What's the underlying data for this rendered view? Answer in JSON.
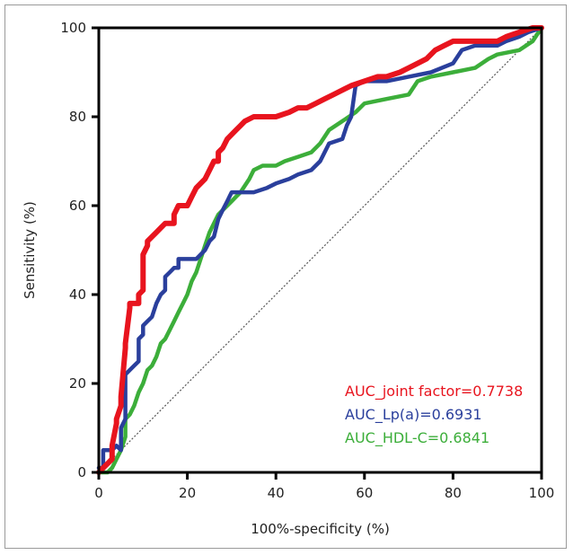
{
  "chart_data": {
    "type": "line",
    "title": "",
    "xlabel": "100%-specificity (%)",
    "ylabel": "Sensitivity (%)",
    "xlim": [
      0,
      100
    ],
    "ylim": [
      0,
      100
    ],
    "xticks": [
      "0",
      "20",
      "40",
      "60",
      "80",
      "100"
    ],
    "yticks": [
      "0",
      "20",
      "40",
      "60",
      "80",
      "100"
    ],
    "legend_position": "bottom-right",
    "reference_line": {
      "name": "chance",
      "x": [
        0,
        100
      ],
      "y": [
        0,
        100
      ],
      "color": "#555555"
    },
    "series": [
      {
        "name": "AUC_joint factor=0.7738",
        "color": "#e8141e",
        "x": [
          0,
          1,
          2,
          3,
          3,
          4,
          4,
          5,
          5,
          6,
          6,
          7,
          7,
          9,
          9,
          10,
          10,
          11,
          11,
          12,
          13,
          14,
          15,
          17,
          17,
          18,
          20,
          21,
          22,
          23,
          24,
          25,
          26,
          27,
          27,
          28,
          29,
          30,
          31,
          32,
          33,
          35,
          37,
          40,
          43,
          45,
          47,
          49,
          51,
          53,
          55,
          57,
          60,
          63,
          65,
          68,
          70,
          72,
          74,
          76,
          78,
          80,
          85,
          90,
          92,
          95,
          98,
          100
        ],
        "y": [
          0,
          1,
          2,
          3,
          6,
          11,
          12,
          15,
          17,
          28,
          29,
          37,
          38,
          38,
          40,
          41,
          49,
          51,
          52,
          53,
          54,
          55,
          56,
          56,
          58,
          60,
          60,
          62,
          64,
          65,
          66,
          68,
          70,
          70,
          72,
          73,
          75,
          76,
          77,
          78,
          79,
          80,
          80,
          80,
          81,
          82,
          82,
          83,
          84,
          85,
          86,
          87,
          88,
          89,
          89,
          90,
          91,
          92,
          93,
          95,
          96,
          97,
          97,
          97,
          98,
          99,
          100,
          100
        ]
      },
      {
        "name": "AUC_Lp(a)=0.6931",
        "color": "#2a3f9c",
        "x": [
          0,
          1,
          1,
          2,
          3,
          4,
          5,
          5,
          6,
          6,
          7,
          8,
          9,
          9,
          10,
          10,
          11,
          12,
          13,
          14,
          15,
          15,
          16,
          17,
          18,
          18,
          19,
          20,
          22,
          24,
          25,
          26,
          27,
          28,
          29,
          30,
          32,
          35,
          38,
          40,
          43,
          45,
          48,
          50,
          52,
          55,
          56,
          57,
          58,
          60,
          65,
          70,
          75,
          80,
          82,
          85,
          90,
          92,
          95,
          97,
          100
        ],
        "y": [
          1,
          1,
          5,
          5,
          5,
          6,
          5,
          10,
          12,
          22,
          23,
          24,
          25,
          30,
          31,
          33,
          34,
          35,
          38,
          40,
          41,
          44,
          45,
          46,
          46,
          48,
          48,
          48,
          48,
          50,
          52,
          53,
          57,
          59,
          61,
          63,
          63,
          63,
          64,
          65,
          66,
          67,
          68,
          70,
          74,
          75,
          78,
          80,
          87,
          88,
          88,
          89,
          90,
          92,
          95,
          96,
          96,
          97,
          98,
          99,
          100
        ]
      },
      {
        "name": "AUC_HDL-C=0.6841",
        "color": "#3cae3a",
        "x": [
          0,
          2,
          3,
          4,
          5,
          6,
          6,
          7,
          8,
          9,
          10,
          11,
          12,
          13,
          14,
          15,
          16,
          17,
          18,
          19,
          20,
          21,
          22,
          23,
          24,
          25,
          26,
          27,
          28,
          29,
          30,
          31,
          32,
          34,
          35,
          37,
          40,
          42,
          45,
          48,
          50,
          52,
          55,
          58,
          60,
          65,
          70,
          72,
          75,
          80,
          85,
          88,
          90,
          95,
          98,
          100
        ],
        "y": [
          0,
          0,
          1,
          3,
          5,
          8,
          12,
          13,
          15,
          18,
          20,
          23,
          24,
          26,
          29,
          30,
          32,
          34,
          36,
          38,
          40,
          43,
          45,
          48,
          51,
          54,
          56,
          58,
          59,
          60,
          61,
          62,
          63,
          66,
          68,
          69,
          69,
          70,
          71,
          72,
          74,
          77,
          79,
          81,
          83,
          84,
          85,
          88,
          89,
          90,
          91,
          93,
          94,
          95,
          97,
          100
        ]
      }
    ]
  }
}
